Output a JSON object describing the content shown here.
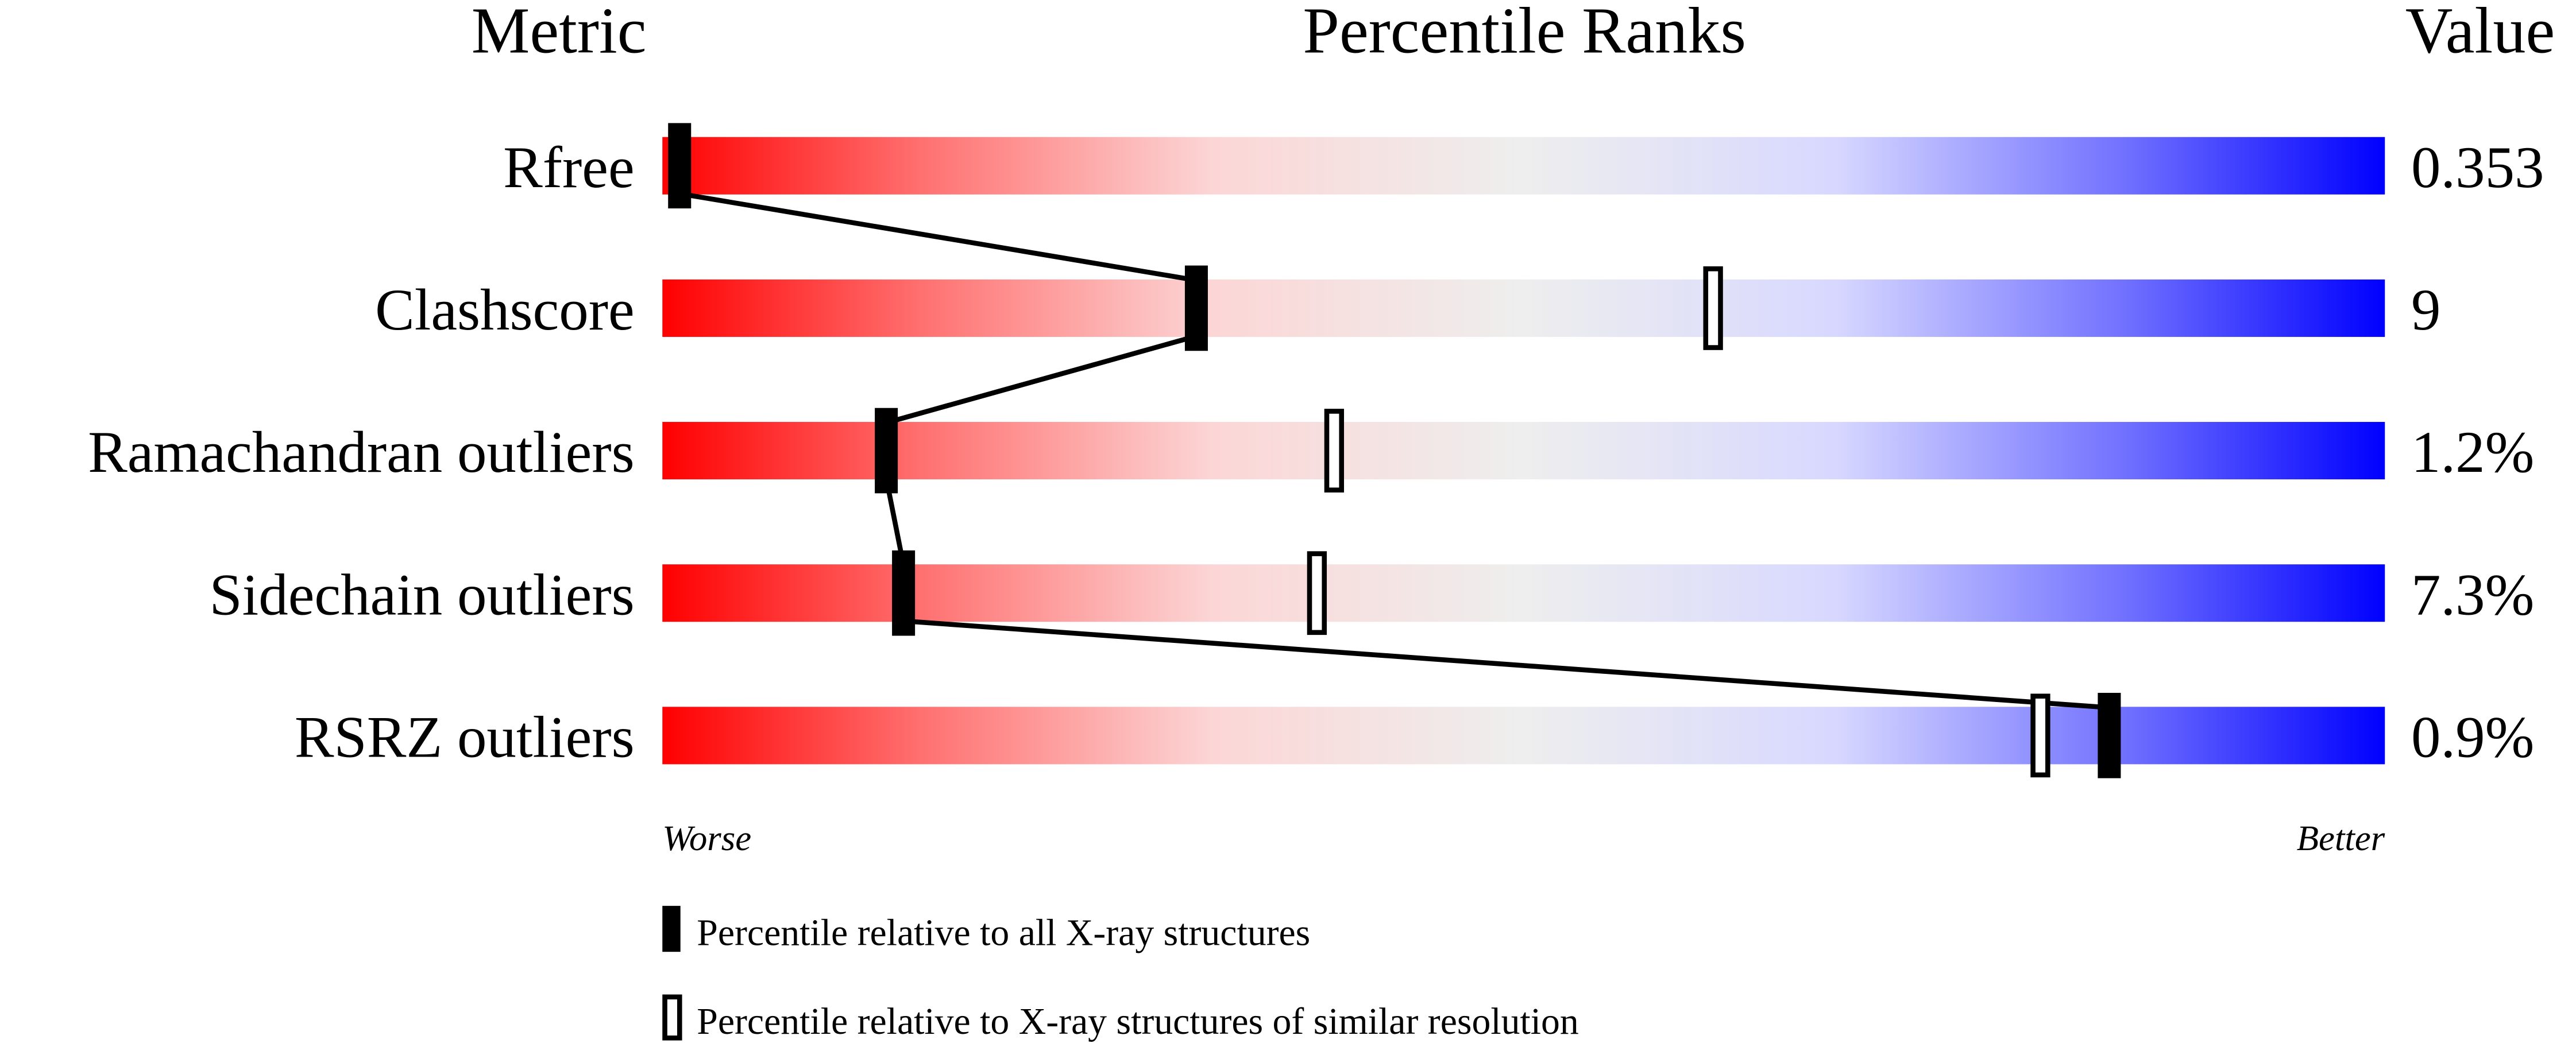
{
  "chart_data": {
    "type": "percentile-ranks",
    "headers": {
      "metric": "Metric",
      "ranks": "Percentile Ranks",
      "value": "Value"
    },
    "xlim": [
      0,
      100
    ],
    "metrics": [
      {
        "name": "Rfree",
        "value": "0.353",
        "percentile_all": 1,
        "percentile_similar": null
      },
      {
        "name": "Clashscore",
        "value": "9",
        "percentile_all": 31,
        "percentile_similar": 61
      },
      {
        "name": "Ramachandran outliers",
        "value": "1.2%",
        "percentile_all": 13,
        "percentile_similar": 39
      },
      {
        "name": "Sidechain outliers",
        "value": "7.3%",
        "percentile_all": 14,
        "percentile_similar": 38
      },
      {
        "name": "RSRZ outliers",
        "value": "0.9%",
        "percentile_all": 84,
        "percentile_similar": 80
      }
    ],
    "axis_labels": {
      "worse": "Worse",
      "better": "Better"
    },
    "legend": {
      "all": "Percentile relative to all X-ray structures",
      "similar": "Percentile relative to X-ray structures of similar resolution"
    },
    "gradient_colors": [
      "#ff0000",
      "#ff7070",
      "#fcd6d6",
      "#eeeeee",
      "#d8d8ff",
      "#7070ff",
      "#0000ff"
    ]
  }
}
